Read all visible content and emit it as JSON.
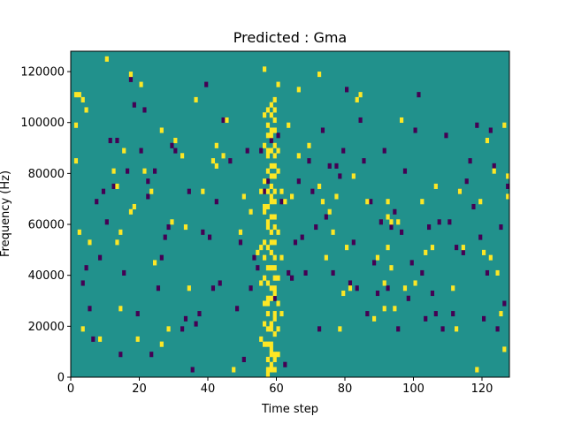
{
  "chart_data": {
    "type": "heatmap",
    "title": "Predicted : Gma",
    "xlabel": "Time step",
    "ylabel": "Frequency (Hz)",
    "xlim": [
      0,
      128
    ],
    "ylim": [
      0,
      128000
    ],
    "x_ticks": [
      0,
      20,
      40,
      60,
      80,
      100,
      120
    ],
    "y_ticks": [
      0,
      20000,
      40000,
      60000,
      80000,
      100000,
      120000
    ],
    "x_tick_labels": [
      "0",
      "20",
      "40",
      "60",
      "80",
      "100",
      "120"
    ],
    "y_tick_labels": [
      "0",
      "20000",
      "40000",
      "60000",
      "80000",
      "100000",
      "120000"
    ],
    "n_time_steps": 128,
    "n_freq_bins": 64,
    "colors": {
      "background": "#21918c",
      "high": "#fde725",
      "low": "#440154"
    },
    "background_value": 0.5,
    "cells_high": [
      [
        1,
        55
      ],
      [
        1,
        49
      ],
      [
        1,
        42
      ],
      [
        2,
        28
      ],
      [
        2,
        55
      ],
      [
        3,
        9
      ],
      [
        3,
        54
      ],
      [
        4,
        52
      ],
      [
        5,
        26
      ],
      [
        8,
        7
      ],
      [
        10,
        62
      ],
      [
        12,
        40
      ],
      [
        13,
        37
      ],
      [
        13,
        26
      ],
      [
        14,
        28
      ],
      [
        14,
        13
      ],
      [
        15,
        44
      ],
      [
        17,
        32
      ],
      [
        17,
        59
      ],
      [
        18,
        33
      ],
      [
        19,
        7
      ],
      [
        20,
        57
      ],
      [
        21,
        40
      ],
      [
        23,
        36
      ],
      [
        24,
        22
      ],
      [
        26,
        6
      ],
      [
        26,
        48
      ],
      [
        28,
        9
      ],
      [
        29,
        30
      ],
      [
        30,
        46
      ],
      [
        32,
        43
      ],
      [
        33,
        29
      ],
      [
        34,
        17
      ],
      [
        36,
        54
      ],
      [
        38,
        36
      ],
      [
        41,
        42
      ],
      [
        42,
        41
      ],
      [
        42,
        45
      ],
      [
        44,
        43
      ],
      [
        45,
        50
      ],
      [
        47,
        1
      ],
      [
        49,
        28
      ],
      [
        50,
        35
      ],
      [
        52,
        32
      ],
      [
        54,
        24
      ],
      [
        55,
        25
      ],
      [
        56,
        60
      ],
      [
        56,
        32
      ],
      [
        57,
        14
      ],
      [
        58,
        10
      ],
      [
        58,
        4
      ],
      [
        59,
        48
      ],
      [
        60,
        44
      ],
      [
        60,
        57
      ],
      [
        62,
        34
      ],
      [
        63,
        49
      ],
      [
        64,
        35
      ],
      [
        66,
        56
      ],
      [
        66,
        43
      ],
      [
        69,
        45
      ],
      [
        72,
        59
      ],
      [
        72,
        37
      ],
      [
        73,
        34
      ],
      [
        74,
        23
      ],
      [
        75,
        32
      ],
      [
        76,
        28
      ],
      [
        77,
        35
      ],
      [
        78,
        9
      ],
      [
        79,
        16
      ],
      [
        80,
        25
      ],
      [
        81,
        17
      ],
      [
        82,
        39
      ],
      [
        83,
        54
      ],
      [
        84,
        55
      ],
      [
        86,
        34
      ],
      [
        88,
        11
      ],
      [
        89,
        23
      ],
      [
        91,
        18
      ],
      [
        91,
        13
      ],
      [
        92,
        31
      ],
      [
        92,
        34
      ],
      [
        92,
        25
      ],
      [
        93,
        30
      ],
      [
        93,
        21
      ],
      [
        94,
        13
      ],
      [
        95,
        30
      ],
      [
        96,
        50
      ],
      [
        97,
        17
      ],
      [
        100,
        18
      ],
      [
        102,
        34
      ],
      [
        103,
        24
      ],
      [
        105,
        25
      ],
      [
        106,
        37
      ],
      [
        111,
        17
      ],
      [
        112,
        9
      ],
      [
        113,
        36
      ],
      [
        114,
        25
      ],
      [
        118,
        1
      ],
      [
        119,
        34
      ],
      [
        120,
        24
      ],
      [
        121,
        46
      ],
      [
        122,
        23
      ],
      [
        123,
        40
      ],
      [
        124,
        20
      ],
      [
        125,
        12
      ],
      [
        126,
        5
      ],
      [
        126,
        49
      ],
      [
        127,
        39
      ],
      [
        127,
        35
      ]
    ],
    "cells_low": [
      [
        3,
        18
      ],
      [
        4,
        21
      ],
      [
        5,
        13
      ],
      [
        6,
        7
      ],
      [
        7,
        34
      ],
      [
        8,
        23
      ],
      [
        9,
        36
      ],
      [
        10,
        30
      ],
      [
        11,
        46
      ],
      [
        12,
        37
      ],
      [
        13,
        46
      ],
      [
        14,
        4
      ],
      [
        15,
        20
      ],
      [
        16,
        40
      ],
      [
        17,
        58
      ],
      [
        18,
        53
      ],
      [
        19,
        12
      ],
      [
        20,
        44
      ],
      [
        21,
        52
      ],
      [
        22,
        38
      ],
      [
        22,
        35
      ],
      [
        23,
        4
      ],
      [
        24,
        40
      ],
      [
        25,
        17
      ],
      [
        26,
        23
      ],
      [
        27,
        27
      ],
      [
        28,
        29
      ],
      [
        29,
        45
      ],
      [
        30,
        44
      ],
      [
        32,
        9
      ],
      [
        33,
        11
      ],
      [
        34,
        36
      ],
      [
        35,
        1
      ],
      [
        36,
        10
      ],
      [
        37,
        12
      ],
      [
        38,
        28
      ],
      [
        39,
        57
      ],
      [
        40,
        27
      ],
      [
        41,
        17
      ],
      [
        42,
        34
      ],
      [
        43,
        18
      ],
      [
        44,
        50
      ],
      [
        46,
        42
      ],
      [
        48,
        13
      ],
      [
        49,
        26
      ],
      [
        50,
        3
      ],
      [
        51,
        44
      ],
      [
        52,
        17
      ],
      [
        53,
        23
      ],
      [
        54,
        21
      ],
      [
        55,
        44
      ],
      [
        56,
        36
      ],
      [
        57,
        38
      ],
      [
        58,
        46
      ],
      [
        59,
        15
      ],
      [
        60,
        47
      ],
      [
        61,
        34
      ],
      [
        62,
        2
      ],
      [
        63,
        20
      ],
      [
        64,
        19
      ],
      [
        65,
        26
      ],
      [
        66,
        38
      ],
      [
        67,
        27
      ],
      [
        68,
        20
      ],
      [
        69,
        42
      ],
      [
        70,
        36
      ],
      [
        71,
        29
      ],
      [
        72,
        9
      ],
      [
        73,
        48
      ],
      [
        74,
        31
      ],
      [
        75,
        41
      ],
      [
        76,
        20
      ],
      [
        77,
        41
      ],
      [
        78,
        39
      ],
      [
        79,
        44
      ],
      [
        80,
        56
      ],
      [
        81,
        18
      ],
      [
        82,
        26
      ],
      [
        83,
        17
      ],
      [
        84,
        50
      ],
      [
        85,
        42
      ],
      [
        86,
        12
      ],
      [
        87,
        34
      ],
      [
        88,
        22
      ],
      [
        89,
        16
      ],
      [
        90,
        30
      ],
      [
        91,
        44
      ],
      [
        92,
        17
      ],
      [
        93,
        29
      ],
      [
        94,
        32
      ],
      [
        95,
        9
      ],
      [
        96,
        28
      ],
      [
        97,
        40
      ],
      [
        98,
        15
      ],
      [
        99,
        22
      ],
      [
        100,
        48
      ],
      [
        101,
        55
      ],
      [
        102,
        20
      ],
      [
        103,
        11
      ],
      [
        104,
        29
      ],
      [
        105,
        16
      ],
      [
        106,
        12
      ],
      [
        107,
        30
      ],
      [
        108,
        9
      ],
      [
        109,
        47
      ],
      [
        110,
        30
      ],
      [
        111,
        12
      ],
      [
        112,
        25
      ],
      [
        113,
        36
      ],
      [
        114,
        24
      ],
      [
        115,
        38
      ],
      [
        116,
        42
      ],
      [
        117,
        33
      ],
      [
        118,
        49
      ],
      [
        119,
        27
      ],
      [
        120,
        11
      ],
      [
        121,
        20
      ],
      [
        122,
        48
      ],
      [
        123,
        41
      ],
      [
        124,
        9
      ],
      [
        125,
        29
      ],
      [
        126,
        14
      ],
      [
        127,
        37
      ]
    ],
    "band_high": [
      [
        57,
        0
      ],
      [
        57,
        1
      ],
      [
        57,
        3
      ],
      [
        57,
        6
      ],
      [
        57,
        9
      ],
      [
        57,
        12
      ],
      [
        57,
        15
      ],
      [
        57,
        18
      ],
      [
        57,
        21
      ],
      [
        57,
        25
      ],
      [
        57,
        29
      ],
      [
        57,
        30
      ],
      [
        57,
        33
      ],
      [
        57,
        36
      ],
      [
        57,
        40
      ],
      [
        57,
        43
      ],
      [
        57,
        44
      ],
      [
        57,
        47
      ],
      [
        57,
        49
      ],
      [
        57,
        52
      ],
      [
        58,
        1
      ],
      [
        58,
        2
      ],
      [
        58,
        5
      ],
      [
        58,
        6
      ],
      [
        58,
        9
      ],
      [
        58,
        10
      ],
      [
        58,
        15
      ],
      [
        58,
        17
      ],
      [
        58,
        21
      ],
      [
        58,
        24
      ],
      [
        58,
        26
      ],
      [
        58,
        28
      ],
      [
        58,
        31
      ],
      [
        58,
        34
      ],
      [
        58,
        35
      ],
      [
        58,
        37
      ],
      [
        58,
        39
      ],
      [
        58,
        41
      ],
      [
        58,
        44
      ],
      [
        58,
        47
      ],
      [
        58,
        48
      ],
      [
        58,
        51
      ],
      [
        58,
        53
      ],
      [
        59,
        1
      ],
      [
        59,
        3
      ],
      [
        59,
        4
      ],
      [
        59,
        8
      ],
      [
        59,
        11
      ],
      [
        59,
        12
      ],
      [
        59,
        16
      ],
      [
        59,
        17
      ],
      [
        59,
        19
      ],
      [
        59,
        21
      ],
      [
        59,
        23
      ],
      [
        59,
        26
      ],
      [
        59,
        29
      ],
      [
        59,
        31
      ],
      [
        59,
        34
      ],
      [
        59,
        36
      ],
      [
        59,
        39
      ],
      [
        59,
        41
      ],
      [
        59,
        43
      ],
      [
        59,
        45
      ],
      [
        59,
        48
      ],
      [
        59,
        50
      ],
      [
        59,
        52
      ],
      [
        59,
        54
      ],
      [
        56,
        6
      ],
      [
        56,
        10
      ],
      [
        56,
        14
      ],
      [
        56,
        19
      ],
      [
        56,
        23
      ],
      [
        56,
        26
      ],
      [
        56,
        33
      ],
      [
        56,
        38
      ],
      [
        56,
        45
      ],
      [
        56,
        51
      ],
      [
        60,
        4
      ],
      [
        60,
        9
      ],
      [
        60,
        14
      ],
      [
        60,
        19
      ],
      [
        60,
        28
      ],
      [
        60,
        40
      ],
      [
        55,
        7
      ],
      [
        55,
        18
      ],
      [
        55,
        36
      ],
      [
        61,
        12
      ],
      [
        61,
        23
      ],
      [
        61,
        36
      ]
    ]
  }
}
